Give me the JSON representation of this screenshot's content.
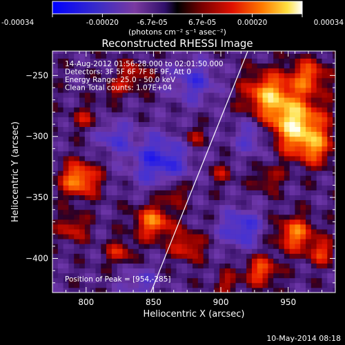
{
  "chart_data": {
    "type": "heatmap",
    "title": "Reconstructed RHESSI Image",
    "xlabel": "Heliocentric X (arcsec)",
    "ylabel": "Heliocentric Y (arcsec)",
    "xlim": [
      775,
      985
    ],
    "ylim": [
      -428,
      -230
    ],
    "xticks": [
      800,
      850,
      900,
      950
    ],
    "yticks": [
      -250,
      -300,
      -350,
      -400
    ],
    "colorbar": {
      "range": [
        -0.00034,
        0.00034
      ],
      "ticks": [
        "-0.00034",
        "-0.00020",
        "-6.7e-05",
        "6.7e-05",
        "0.00020",
        "0.00034"
      ],
      "unit_label": "(photons cm⁻² s⁻¹ asec⁻²)"
    },
    "info_lines": [
      "14-Aug-2012 01:56:28.000 to 02:01:50.000",
      "Detectors: 3F 5F 6F 7F 8F 9F, Att 0",
      "Energy Range: 25.0 - 50.0 keV",
      "Clean     Total counts: 1.07E+04"
    ],
    "peak_label": "Position of Peak = [954,-285]",
    "peak_position": [
      954,
      -285
    ],
    "limb_line": [
      [
        848,
        -428
      ],
      [
        920,
        -230
      ]
    ]
  },
  "footer": {
    "timestamp": "10-May-2014 08:18"
  }
}
